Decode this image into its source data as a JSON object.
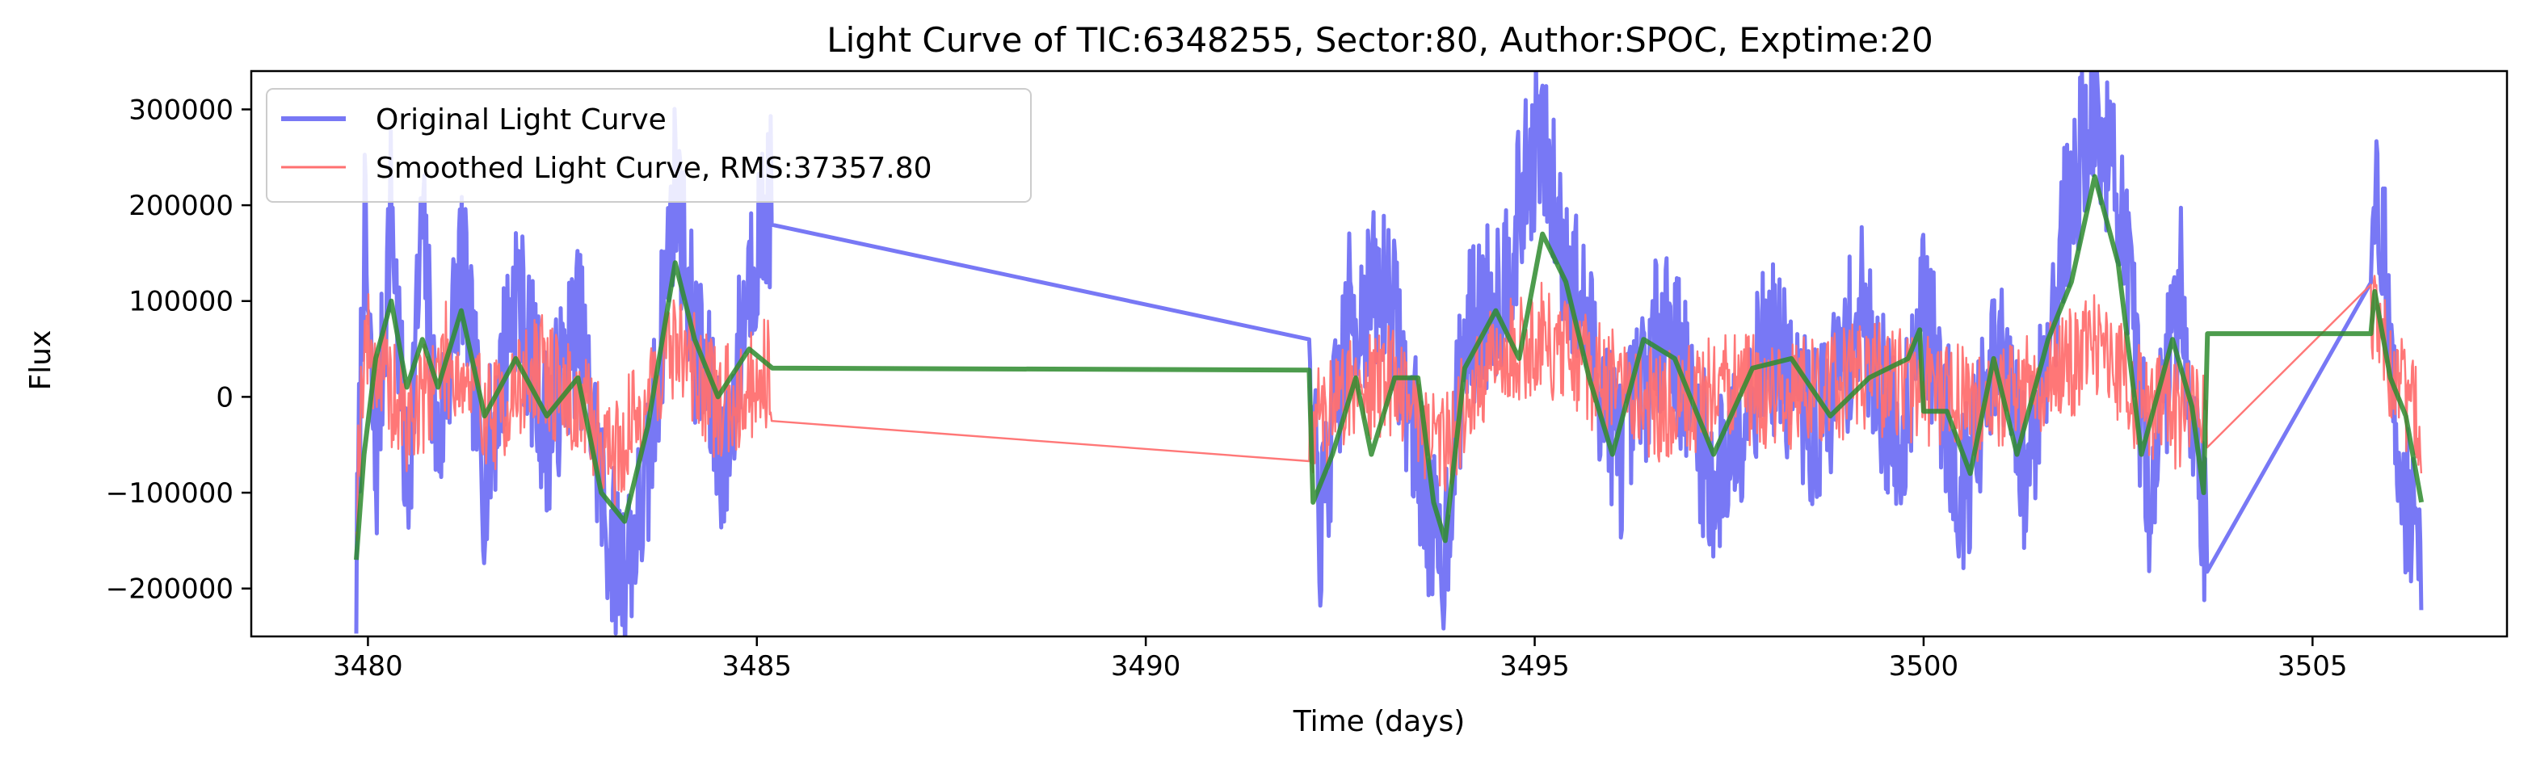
{
  "chart_data": {
    "type": "line",
    "title": "Light Curve of TIC:6348255, Sector:80, Author:SPOC, Exptime:20",
    "xlabel": "Time (days)",
    "ylabel": "Flux",
    "xlim": [
      3478.5,
      3507.5
    ],
    "ylim": [
      -250000,
      340000
    ],
    "xticks": [
      3480,
      3485,
      3490,
      3495,
      3500,
      3505
    ],
    "yticks": [
      -200000,
      -100000,
      0,
      100000,
      200000,
      300000
    ],
    "xtick_labels": [
      "3480",
      "3485",
      "3490",
      "3495",
      "3500",
      "3505"
    ],
    "ytick_labels": [
      "−200000",
      "−100000",
      "0",
      "100000",
      "200000",
      "300000"
    ],
    "grid": false,
    "legend_position": "upper-left",
    "segments": [
      {
        "start": 3479.85,
        "end": 3485.2
      },
      {
        "start": 3492.1,
        "end": 3503.65
      },
      {
        "start": 3505.75,
        "end": 3506.4
      }
    ],
    "series": [
      {
        "name": "Original Light Curve",
        "color": "#7878f5",
        "amplitude": 90000,
        "points": [
          [
            3479.85,
            -200000
          ],
          [
            3479.95,
            180000
          ],
          [
            3480.1,
            -90000
          ],
          [
            3480.3,
            210000
          ],
          [
            3480.5,
            -110000
          ],
          [
            3480.7,
            180000
          ],
          [
            3480.9,
            -60000
          ],
          [
            3481.2,
            150000
          ],
          [
            3481.5,
            -90000
          ],
          [
            3481.9,
            120000
          ],
          [
            3482.3,
            -40000
          ],
          [
            3482.7,
            80000
          ],
          [
            3483.1,
            -150000
          ],
          [
            3483.3,
            -180000
          ],
          [
            3483.6,
            -90000
          ],
          [
            3483.95,
            230000
          ],
          [
            3484.2,
            60000
          ],
          [
            3484.6,
            -70000
          ],
          [
            3484.9,
            130000
          ],
          [
            3485.2,
            210000
          ],
          [
            3492.1,
            -10000
          ],
          [
            3492.25,
            -140000
          ],
          [
            3492.6,
            80000
          ],
          [
            3493.1,
            120000
          ],
          [
            3493.5,
            -60000
          ],
          [
            3493.8,
            -190000
          ],
          [
            3494.1,
            60000
          ],
          [
            3494.6,
            120000
          ],
          [
            3495.05,
            280000
          ],
          [
            3495.3,
            180000
          ],
          [
            3495.7,
            60000
          ],
          [
            3496.1,
            -60000
          ],
          [
            3496.7,
            90000
          ],
          [
            3497.3,
            -100000
          ],
          [
            3498.0,
            60000
          ],
          [
            3498.6,
            -40000
          ],
          [
            3499.2,
            90000
          ],
          [
            3499.7,
            -70000
          ],
          [
            3499.95,
            110000
          ],
          [
            3500.5,
            -100000
          ],
          [
            3501.0,
            50000
          ],
          [
            3501.3,
            -90000
          ],
          [
            3501.8,
            170000
          ],
          [
            3502.15,
            300000
          ],
          [
            3502.5,
            220000
          ],
          [
            3502.9,
            -100000
          ],
          [
            3503.3,
            120000
          ],
          [
            3503.65,
            -170000
          ],
          [
            3505.75,
            150000
          ],
          [
            3505.85,
            220000
          ],
          [
            3506.1,
            -60000
          ],
          [
            3506.4,
            -170000
          ]
        ]
      },
      {
        "name": "Smoothed Light Curve, RMS:37357.80",
        "color": "#ff7070",
        "amplitude": 60000,
        "points": [
          [
            3479.85,
            -110000
          ],
          [
            3479.95,
            60000
          ],
          [
            3480.5,
            -30000
          ],
          [
            3481.0,
            40000
          ],
          [
            3481.6,
            -20000
          ],
          [
            3482.2,
            30000
          ],
          [
            3482.8,
            -20000
          ],
          [
            3483.2,
            -60000
          ],
          [
            3483.95,
            60000
          ],
          [
            3484.5,
            -10000
          ],
          [
            3485.2,
            30000
          ],
          [
            3492.1,
            -35000
          ],
          [
            3492.6,
            10000
          ],
          [
            3493.2,
            20000
          ],
          [
            3493.8,
            -50000
          ],
          [
            3494.5,
            40000
          ],
          [
            3495.1,
            60000
          ],
          [
            3495.8,
            20000
          ],
          [
            3496.6,
            -10000
          ],
          [
            3497.4,
            10000
          ],
          [
            3498.3,
            0
          ],
          [
            3499.2,
            20000
          ],
          [
            3500.0,
            10000
          ],
          [
            3500.8,
            -10000
          ],
          [
            3501.5,
            20000
          ],
          [
            3502.2,
            50000
          ],
          [
            3502.9,
            -10000
          ],
          [
            3503.65,
            -25000
          ],
          [
            3505.75,
            80000
          ],
          [
            3506.1,
            10000
          ],
          [
            3506.4,
            -40000
          ]
        ]
      },
      {
        "name": "",
        "color": "#2e8b2e",
        "amplitude": 0,
        "points": [
          [
            3479.85,
            -170000
          ],
          [
            3479.95,
            -60000
          ],
          [
            3480.1,
            40000
          ],
          [
            3480.3,
            100000
          ],
          [
            3480.5,
            10000
          ],
          [
            3480.7,
            60000
          ],
          [
            3480.9,
            10000
          ],
          [
            3481.2,
            90000
          ],
          [
            3481.5,
            -20000
          ],
          [
            3481.9,
            40000
          ],
          [
            3482.3,
            -20000
          ],
          [
            3482.7,
            20000
          ],
          [
            3483.0,
            -100000
          ],
          [
            3483.3,
            -130000
          ],
          [
            3483.6,
            -30000
          ],
          [
            3483.95,
            140000
          ],
          [
            3484.2,
            60000
          ],
          [
            3484.5,
            0
          ],
          [
            3484.9,
            50000
          ],
          [
            3485.2,
            30000
          ],
          [
            3492.1,
            28000
          ],
          [
            3492.15,
            -110000
          ],
          [
            3492.4,
            -60000
          ],
          [
            3492.7,
            20000
          ],
          [
            3492.9,
            -60000
          ],
          [
            3493.2,
            20000
          ],
          [
            3493.5,
            20000
          ],
          [
            3493.7,
            -110000
          ],
          [
            3493.85,
            -150000
          ],
          [
            3494.1,
            30000
          ],
          [
            3494.5,
            90000
          ],
          [
            3494.8,
            40000
          ],
          [
            3495.1,
            170000
          ],
          [
            3495.4,
            120000
          ],
          [
            3495.7,
            20000
          ],
          [
            3496.0,
            -60000
          ],
          [
            3496.4,
            60000
          ],
          [
            3496.8,
            40000
          ],
          [
            3497.3,
            -60000
          ],
          [
            3497.8,
            30000
          ],
          [
            3498.3,
            40000
          ],
          [
            3498.8,
            -20000
          ],
          [
            3499.3,
            20000
          ],
          [
            3499.8,
            40000
          ],
          [
            3499.95,
            70000
          ],
          [
            3500.0,
            -15000
          ],
          [
            3500.3,
            -15000
          ],
          [
            3500.6,
            -80000
          ],
          [
            3500.9,
            40000
          ],
          [
            3501.2,
            -60000
          ],
          [
            3501.6,
            60000
          ],
          [
            3501.9,
            120000
          ],
          [
            3502.2,
            230000
          ],
          [
            3502.5,
            140000
          ],
          [
            3502.8,
            -60000
          ],
          [
            3503.2,
            60000
          ],
          [
            3503.45,
            -10000
          ],
          [
            3503.6,
            -100000
          ],
          [
            3503.65,
            66000
          ],
          [
            3505.75,
            66000
          ],
          [
            3505.8,
            110000
          ],
          [
            3506.0,
            20000
          ],
          [
            3506.2,
            -20000
          ],
          [
            3506.4,
            -110000
          ]
        ]
      }
    ]
  }
}
